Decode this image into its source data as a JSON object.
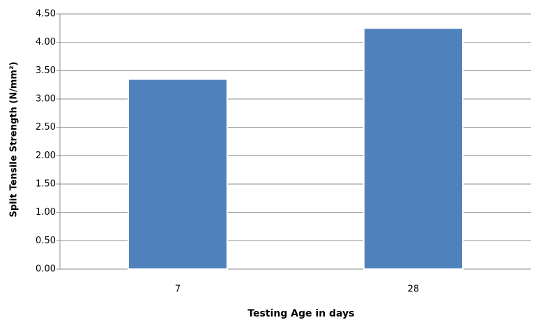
{
  "chart_data": {
    "type": "bar",
    "categories": [
      "7",
      "28"
    ],
    "values": [
      3.35,
      4.25
    ],
    "color": "#4f81bd",
    "xlabel": "Testing Age in days",
    "ylabel": "Split Tensile Strength (N/mm²)",
    "ylim": [
      0,
      4.5
    ],
    "yticks": [
      {
        "value": 0,
        "label": "0.00"
      },
      {
        "value": 0.5,
        "label": "0.50"
      },
      {
        "value": 1,
        "label": "1.00"
      },
      {
        "value": 1.5,
        "label": "1.50"
      },
      {
        "value": 2,
        "label": "2.00"
      },
      {
        "value": 2.5,
        "label": "2.50"
      },
      {
        "value": 3,
        "label": "3.00"
      },
      {
        "value": 3.5,
        "label": "3.50"
      },
      {
        "value": 4,
        "label": "4.00"
      },
      {
        "value": 4.5,
        "label": "4.50"
      }
    ],
    "grid": true
  }
}
